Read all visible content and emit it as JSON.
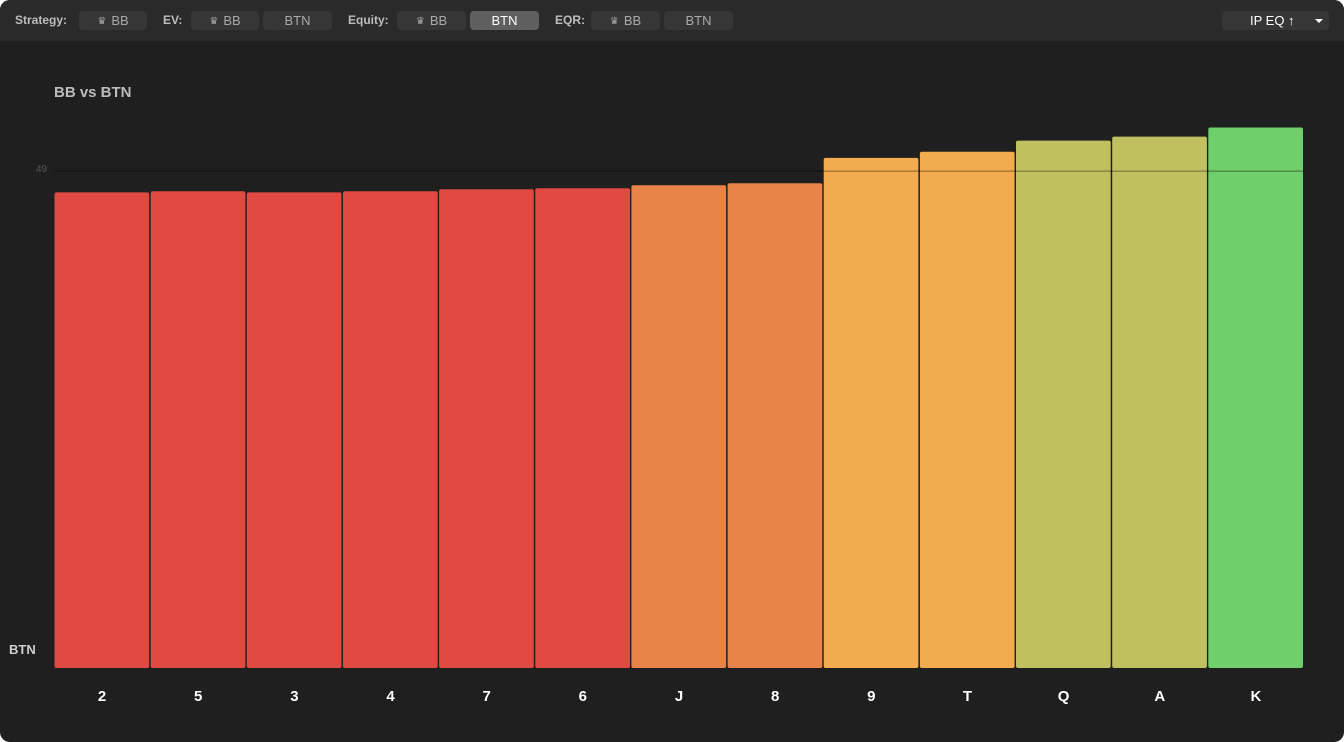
{
  "toolbar": {
    "strategy_label": "Strategy:",
    "ev_label": "EV:",
    "equity_label": "Equity:",
    "eqr_label": "EQR:",
    "strategy_bb": "BB",
    "ev_bb": "BB",
    "ev_btn": "BTN",
    "equity_bb": "BB",
    "equity_btn": "BTN",
    "eqr_bb": "BB",
    "eqr_btn": "BTN",
    "crown_glyph": "♛",
    "sort_label": "IP EQ ↑",
    "active_option": "equity_btn"
  },
  "chart_data": {
    "type": "bar",
    "title": "BB vs BTN",
    "ylabel": "BTN",
    "reference_line": 49,
    "reference_label": "49",
    "ylim": [
      0,
      56.5
    ],
    "categories": [
      "2",
      "5",
      "3",
      "4",
      "7",
      "6",
      "J",
      "8",
      "9",
      "T",
      "Q",
      "A",
      "K"
    ],
    "values": [
      46.9,
      47.0,
      46.9,
      47.0,
      47.2,
      47.3,
      47.6,
      47.8,
      50.3,
      50.9,
      52.0,
      52.4,
      53.3
    ],
    "colors": [
      "#e04a42",
      "#e04a42",
      "#e04a42",
      "#e04a42",
      "#e04a42",
      "#e04a42",
      "#e88447",
      "#e88447",
      "#f2ac4f",
      "#f2ac4f",
      "#c1c061",
      "#c1c061",
      "#6fcf6a"
    ],
    "grid": false,
    "legend": "none"
  }
}
